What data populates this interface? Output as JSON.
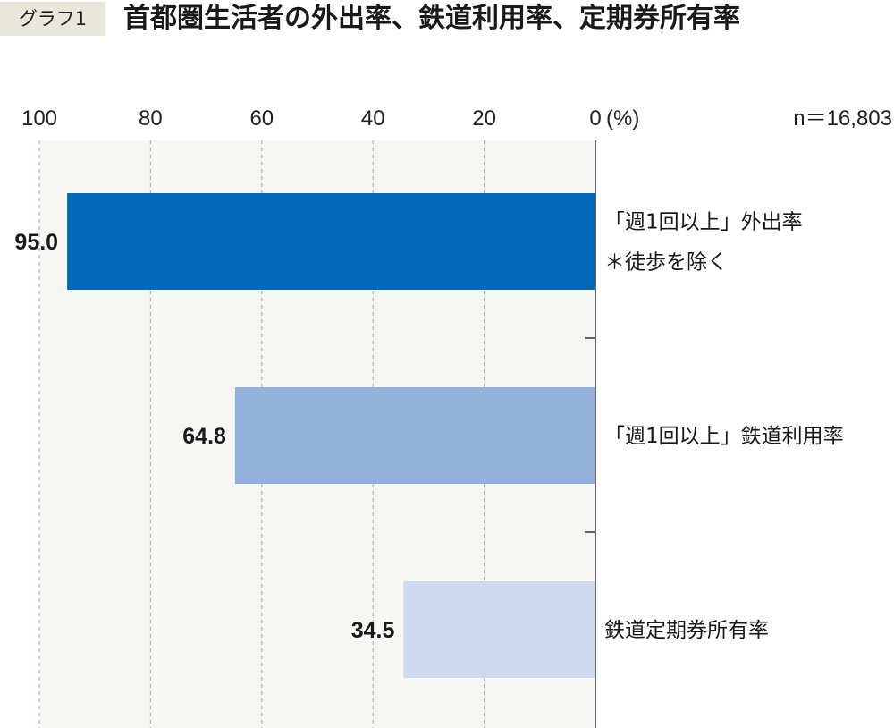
{
  "header": {
    "tag": "グラフ1",
    "title": "首都圏生活者の外出率、鉄道利用率、定期券所有率"
  },
  "chart_data": {
    "type": "bar",
    "orientation": "horizontal",
    "axis_direction": "reversed",
    "title": "首都圏生活者の外出率、鉄道利用率、定期券所有率",
    "xlim": [
      0,
      100
    ],
    "x_ticks": [
      100,
      80,
      60,
      40,
      20,
      0
    ],
    "x_tick_labels": [
      "100",
      "80",
      "60",
      "40",
      "20",
      "0"
    ],
    "unit_label": "(%)",
    "sample_note": "n＝16,803",
    "grid": true,
    "categories": [
      {
        "lines": [
          "「週1回以上」外出率",
          "＊徒歩を除く"
        ]
      },
      {
        "lines": [
          "「週1回以上」鉄道利用率"
        ]
      },
      {
        "lines": [
          "鉄道定期券所有率"
        ]
      }
    ],
    "values": [
      95.0,
      64.8,
      34.5
    ],
    "value_labels": [
      "95.0",
      "64.8",
      "34.5"
    ],
    "colors": [
      "#0068b5",
      "#94b0dc",
      "#cdd9ef"
    ],
    "plot_background": "#f7f6f2",
    "grid_color": "#b5b5b5"
  }
}
